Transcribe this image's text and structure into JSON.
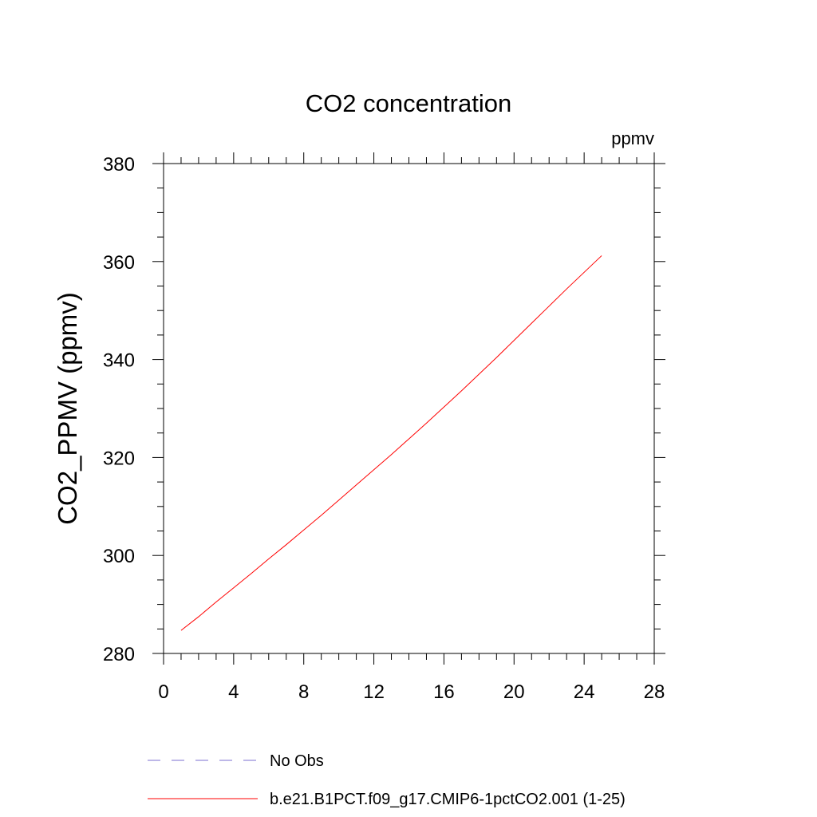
{
  "chart_data": {
    "type": "line",
    "title": "CO2 concentration",
    "units_label": "ppmv",
    "xlabel": "",
    "ylabel": "CO2_PPMV  (ppmv)",
    "xlim": [
      0,
      28
    ],
    "ylim": [
      280,
      380
    ],
    "x_ticks": [
      0,
      4,
      8,
      12,
      16,
      20,
      24,
      28
    ],
    "y_ticks": [
      280,
      300,
      320,
      340,
      360,
      380
    ],
    "x_tick_labels": [
      "0",
      "4",
      "8",
      "12",
      "16",
      "20",
      "24",
      "28"
    ],
    "y_tick_labels": [
      "280",
      "300",
      "320",
      "340",
      "360",
      "380"
    ],
    "grid": false,
    "legend_position": "bottom",
    "series": [
      {
        "name": "No Obs",
        "color": "#7b6fd0",
        "dash": "dashed",
        "x": [],
        "y": []
      },
      {
        "name": "b.e21.B1PCT.f09_g17.CMIP6-1pctCO2.001 (1-25)",
        "color": "#ff0000",
        "dash": "solid",
        "x": [
          1,
          2,
          3,
          4,
          5,
          6,
          7,
          8,
          9,
          10,
          11,
          12,
          13,
          14,
          15,
          16,
          17,
          18,
          19,
          20,
          21,
          22,
          23,
          24,
          25
        ],
        "y": [
          284.7,
          287.5,
          290.5,
          293.4,
          296.3,
          299.3,
          302.2,
          305.2,
          308.2,
          311.3,
          314.4,
          317.5,
          320.6,
          323.8,
          327.0,
          330.3,
          333.6,
          337.0,
          340.4,
          343.9,
          347.4,
          350.9,
          354.4,
          357.8,
          361.2
        ]
      }
    ]
  }
}
